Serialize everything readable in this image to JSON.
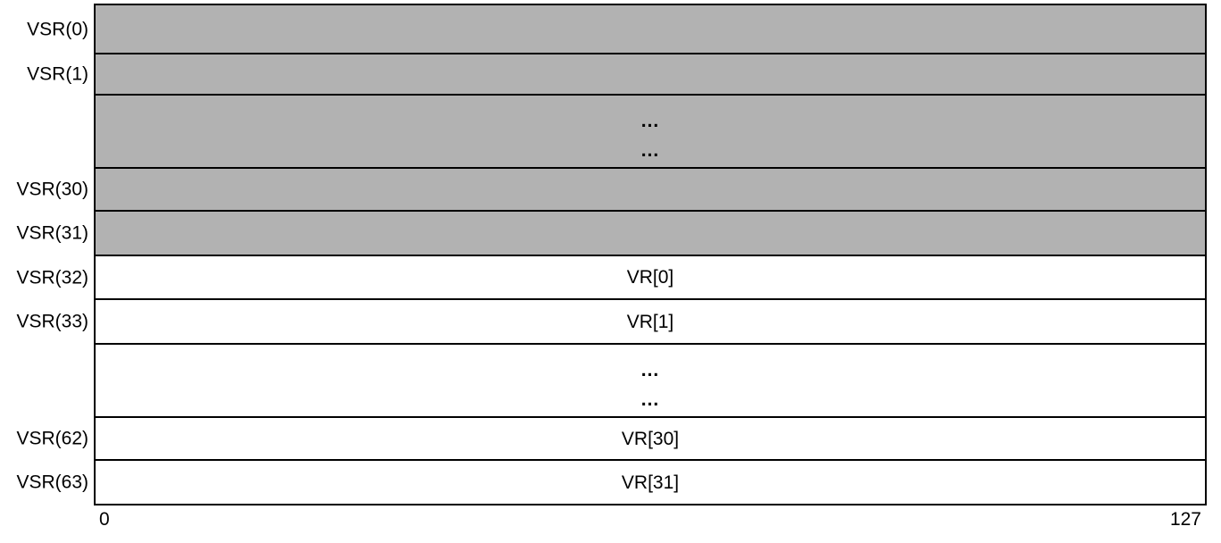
{
  "diagram": {
    "description": "Vector-Scalar Register (VSR) file layout; upper 32 registers shaded, lower 32 registers overlap the Vector Registers (VR), 128 bits wide",
    "rows": [
      {
        "label": "VSR(0)",
        "content": ""
      },
      {
        "label": "VSR(1)",
        "content": ""
      },
      {
        "label": "",
        "dots": [
          "...",
          "..."
        ]
      },
      {
        "label": "VSR(30)",
        "content": ""
      },
      {
        "label": "VSR(31)",
        "content": ""
      },
      {
        "label": "VSR(32)",
        "content": "VR[0]"
      },
      {
        "label": "VSR(33)",
        "content": "VR[1]"
      },
      {
        "label": "",
        "dots": [
          "...",
          "..."
        ]
      },
      {
        "label": "VSR(62)",
        "content": "VR[30]"
      },
      {
        "label": "VSR(63)",
        "content": "VR[31]"
      }
    ],
    "scale": {
      "left_bit": "0",
      "right_bit": "127"
    },
    "colors": {
      "shaded_fill": "#b2b2b2",
      "border": "#000000",
      "background": "#ffffff",
      "text": "#000000"
    }
  }
}
